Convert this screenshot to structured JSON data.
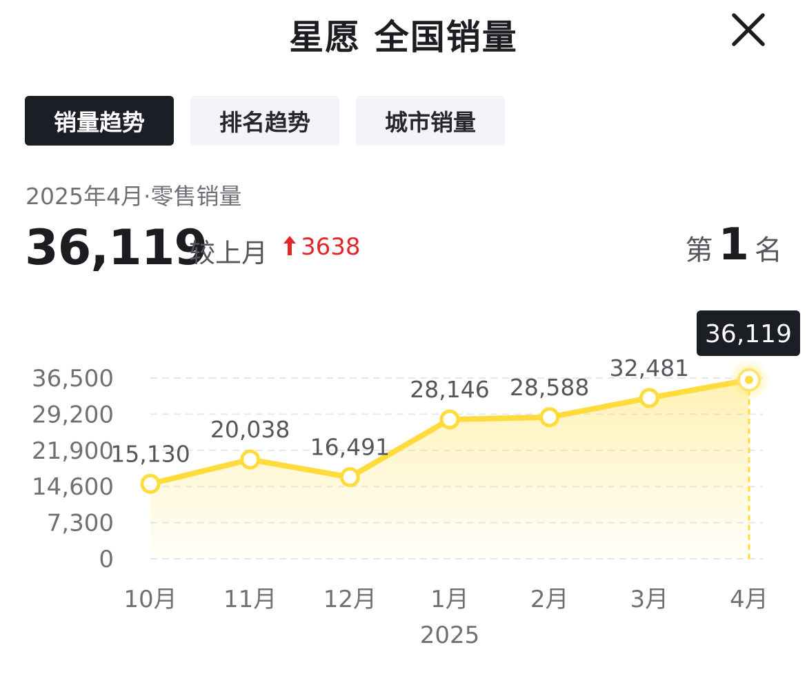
{
  "header": {
    "title": "星愿 全国销量",
    "close_icon": "close-icon"
  },
  "tabs": [
    {
      "label": "销量趋势",
      "active": true
    },
    {
      "label": "排名趋势",
      "active": false
    },
    {
      "label": "城市销量",
      "active": false
    }
  ],
  "summary": {
    "period": "2025年4月·零售销量",
    "value": "36,119",
    "compare_label": "较上月",
    "compare_value": "3638",
    "compare_direction": "up",
    "compare_icon": "arrow-up-icon",
    "rank_prefix": "第",
    "rank": "1",
    "rank_suffix": "名"
  },
  "colors": {
    "accent": "#FFDC3C",
    "up": "#E4262B",
    "tab_active_bg": "#1C1E25",
    "tooltip_bg": "#1C1E25"
  },
  "chart_data": {
    "type": "area",
    "categories": [
      "10月",
      "11月",
      "12月",
      "1月",
      "2月",
      "3月",
      "4月"
    ],
    "x_sublabel": "2025",
    "values": [
      15130,
      20038,
      16491,
      28146,
      28588,
      32481,
      36119
    ],
    "value_labels": [
      "15,130",
      "20,038",
      "16,491",
      "28,146",
      "28,588",
      "32,481",
      "36,119"
    ],
    "y_ticks": [
      "36,500",
      "29,200",
      "21,900",
      "14,600",
      "7,300",
      "0"
    ],
    "y_tick_values": [
      36500,
      29200,
      21900,
      14600,
      7300,
      0
    ],
    "ylim": [
      0,
      36500
    ],
    "grid": true,
    "highlight_index": 6,
    "tooltip": "36,119"
  }
}
